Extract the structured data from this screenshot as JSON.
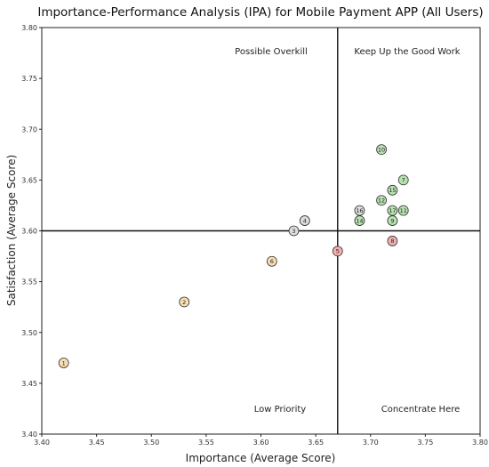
{
  "chart_data": {
    "type": "scatter",
    "title": "Importance-Performance Analysis (IPA) for Mobile Payment APP (All Users)",
    "xlabel": "Importance (Average Score)",
    "ylabel": "Satisfaction (Average Score)",
    "xlim": [
      3.4,
      3.8
    ],
    "ylim": [
      3.4,
      3.8
    ],
    "xticks": [
      "3.40",
      "3.45",
      "3.50",
      "3.55",
      "3.60",
      "3.65",
      "3.70",
      "3.75",
      "3.80"
    ],
    "yticks": [
      "3.40",
      "3.45",
      "3.50",
      "3.55",
      "3.60",
      "3.65",
      "3.70",
      "3.75",
      "3.80"
    ],
    "x_mean": 3.67,
    "y_mean": 3.6,
    "quadrants": {
      "top_left": "Possible Overkill",
      "top_right": "Keep Up the Good Work",
      "bottom_left": "Low Priority",
      "bottom_right": "Concentrate Here"
    },
    "colors": {
      "keep": "#b7e2b0",
      "overkill": "#dcdcdc",
      "low": "#f8deb2",
      "concentrate": "#f4b0b0"
    },
    "points": [
      {
        "label": "1",
        "x": 3.42,
        "y": 3.47,
        "group": "low"
      },
      {
        "label": "2",
        "x": 3.53,
        "y": 3.53,
        "group": "low"
      },
      {
        "label": "3",
        "x": 3.63,
        "y": 3.6,
        "group": "overkill"
      },
      {
        "label": "4",
        "x": 3.64,
        "y": 3.61,
        "group": "overkill"
      },
      {
        "label": "5",
        "x": 3.67,
        "y": 3.58,
        "group": "concentrate"
      },
      {
        "label": "6",
        "x": 3.61,
        "y": 3.57,
        "group": "low"
      },
      {
        "label": "7",
        "x": 3.73,
        "y": 3.65,
        "group": "keep"
      },
      {
        "label": "8",
        "x": 3.72,
        "y": 3.59,
        "group": "concentrate"
      },
      {
        "label": "9",
        "x": 3.72,
        "y": 3.61,
        "group": "keep"
      },
      {
        "label": "10",
        "x": 3.71,
        "y": 3.68,
        "group": "keep"
      },
      {
        "label": "11",
        "x": 3.73,
        "y": 3.62,
        "group": "keep"
      },
      {
        "label": "12",
        "x": 3.71,
        "y": 3.63,
        "group": "keep"
      },
      {
        "label": "14",
        "x": 3.69,
        "y": 3.61,
        "group": "keep"
      },
      {
        "label": "15",
        "x": 3.72,
        "y": 3.64,
        "group": "keep"
      },
      {
        "label": "16",
        "x": 3.69,
        "y": 3.62,
        "group": "overkill"
      },
      {
        "label": "17",
        "x": 3.72,
        "y": 3.62,
        "group": "keep"
      }
    ]
  }
}
